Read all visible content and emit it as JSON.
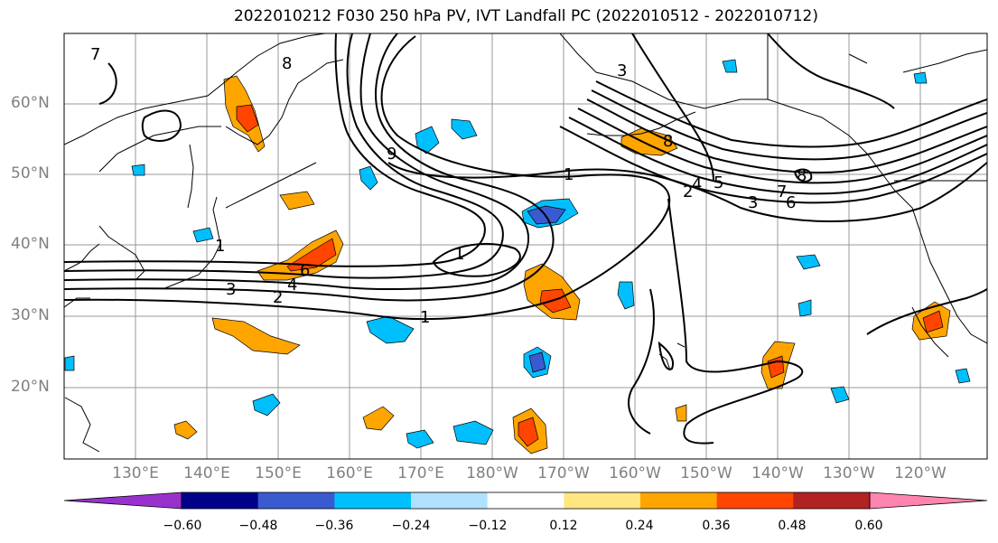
{
  "title": "2022010212 F030 250 hPa PV, IVT Landfall PC (2022010512 - 2022010712)",
  "lat_labels": [
    "60°N",
    "50°N",
    "40°N",
    "30°N",
    "20°N"
  ],
  "lon_labels": [
    "130°E",
    "140°E",
    "150°E",
    "160°E",
    "170°E",
    "180°W",
    "170°W",
    "160°W",
    "150°W",
    "140°W",
    "130°W",
    "120°W"
  ],
  "contour_labels": [
    "1",
    "1",
    "1",
    "1",
    "2",
    "2",
    "3",
    "3",
    "3",
    "4",
    "4",
    "5",
    "6",
    "6",
    "7",
    "7",
    "8",
    "8",
    "8",
    "9"
  ],
  "colorbar": {
    "ticks": [
      "−0.60",
      "−0.48",
      "−0.36",
      "−0.24",
      "−0.12",
      "0.12",
      "0.24",
      "0.36",
      "0.48",
      "0.60"
    ],
    "colors": [
      "#9932cc",
      "#00008b",
      "#3a5bd0",
      "#00bfff",
      "#b0e2ff",
      "#ffffff",
      "#ffe680",
      "#ffa500",
      "#ff4500",
      "#b22222",
      "#ff85b0"
    ]
  }
}
